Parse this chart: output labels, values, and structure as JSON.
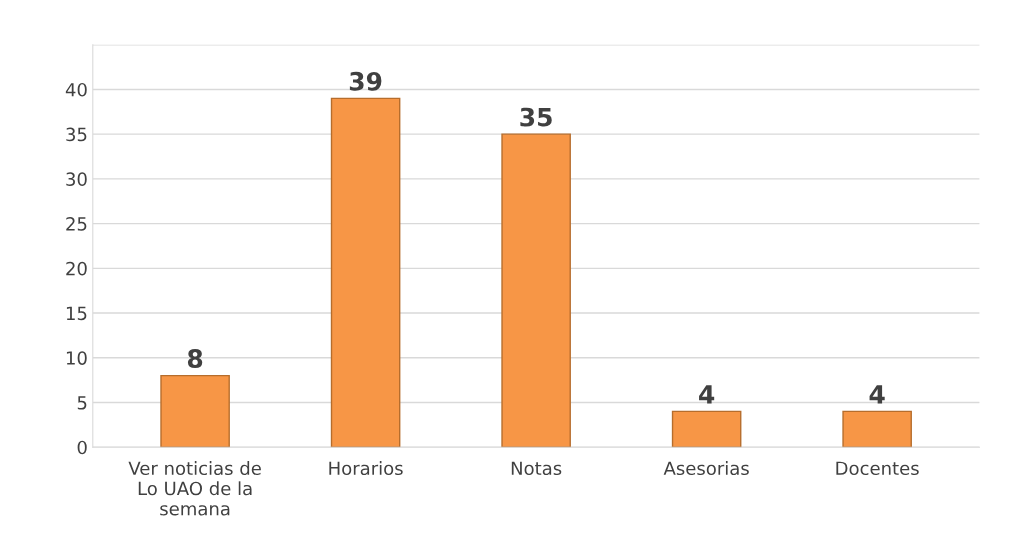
{
  "chart_data": {
    "type": "bar",
    "categories": [
      "Ver noticias de\nLo UAO de la\nsemana",
      "Horarios",
      "Notas",
      "Asesorias",
      "Docentes"
    ],
    "values": [
      8,
      39,
      35,
      4,
      4
    ],
    "color": "#f79646",
    "ylim": [
      0,
      45
    ],
    "yticks": [
      0,
      5,
      10,
      15,
      20,
      25,
      30,
      35,
      40,
      {
        "value": 45,
        "label": null
      }
    ],
    "grid": "y",
    "data_labels": true
  }
}
